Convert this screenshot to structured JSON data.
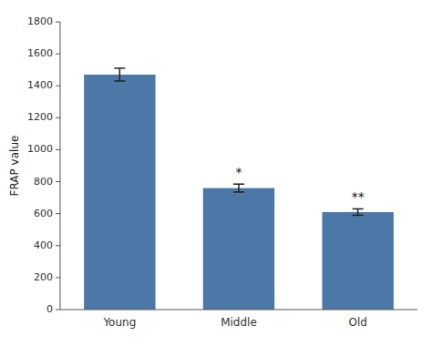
{
  "chart_data": {
    "type": "bar",
    "categories": [
      "Young",
      "Middle",
      "Old"
    ],
    "values": [
      1470,
      760,
      610
    ],
    "errors": [
      40,
      25,
      20
    ],
    "annotations": [
      null,
      "*",
      "**"
    ],
    "ylabel": "FRAP value",
    "ylim": [
      0,
      1800
    ],
    "yticks": [
      0,
      200,
      400,
      600,
      800,
      1000,
      1200,
      1400,
      1600,
      1800
    ],
    "color": "#4c78a8",
    "grid": false
  }
}
